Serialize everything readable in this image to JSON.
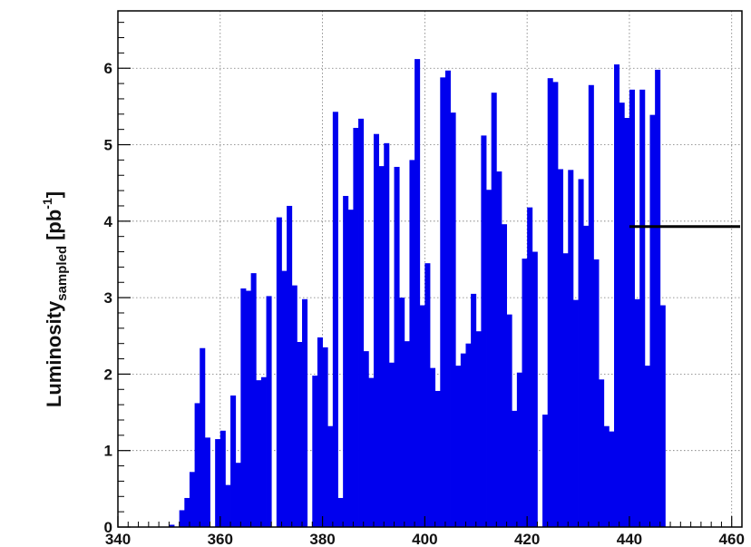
{
  "chart_data": {
    "type": "bar",
    "title": "",
    "xlabel": "",
    "ylabel": {
      "main": "Luminosity",
      "subscript": "sampled",
      "unit_open": "[pb",
      "unit_exp": "-1",
      "unit_close": "]"
    },
    "xlim": [
      340,
      462
    ],
    "ylim": [
      0,
      6.75
    ],
    "grid": true,
    "bin_width": 1,
    "bar_color": "#0000ee",
    "x_ticks": [
      340,
      360,
      380,
      400,
      420,
      440,
      460
    ],
    "y_ticks": [
      0,
      1,
      2,
      3,
      4,
      5,
      6
    ],
    "x_tick_labels": [
      "340",
      "360",
      "380",
      "400",
      "420",
      "440",
      "460"
    ],
    "y_tick_labels": [
      "0",
      "1",
      "2",
      "3",
      "4",
      "5",
      "6"
    ],
    "bins_start": 345,
    "values": [
      0,
      0,
      0,
      0,
      0,
      0.03,
      0,
      0.22,
      0.38,
      0.72,
      1.62,
      2.34,
      1.17,
      0,
      1.15,
      1.26,
      0.55,
      1.72,
      0.84,
      3.12,
      3.09,
      3.32,
      1.92,
      1.96,
      3.02,
      0,
      4.05,
      3.35,
      4.2,
      3.16,
      2.42,
      2.98,
      0,
      1.98,
      2.48,
      2.35,
      1.32,
      5.43,
      0.38,
      4.33,
      4.15,
      5.22,
      5.34,
      2.3,
      1.95,
      5.14,
      4.72,
      5.02,
      2.15,
      4.71,
      3.0,
      2.43,
      4.8,
      6.12,
      2.9,
      3.45,
      2.08,
      1.78,
      5.88,
      5.97,
      5.42,
      2.11,
      2.27,
      2.4,
      3.05,
      2.56,
      5.12,
      4.41,
      5.68,
      4.65,
      3.96,
      2.78,
      1.52,
      2.02,
      3.51,
      4.18,
      3.6,
      0,
      1.47,
      5.87,
      5.82,
      4.68,
      3.58,
      4.67,
      2.97,
      4.55,
      3.94,
      5.78,
      3.5,
      1.93,
      1.32,
      1.25,
      6.05,
      5.55,
      5.35,
      5.72,
      2.98,
      5.72,
      2.11,
      5.39,
      5.98,
      2.9
    ],
    "reference_line": {
      "y": 3.93,
      "x_start": 440,
      "x_end": 462
    }
  }
}
